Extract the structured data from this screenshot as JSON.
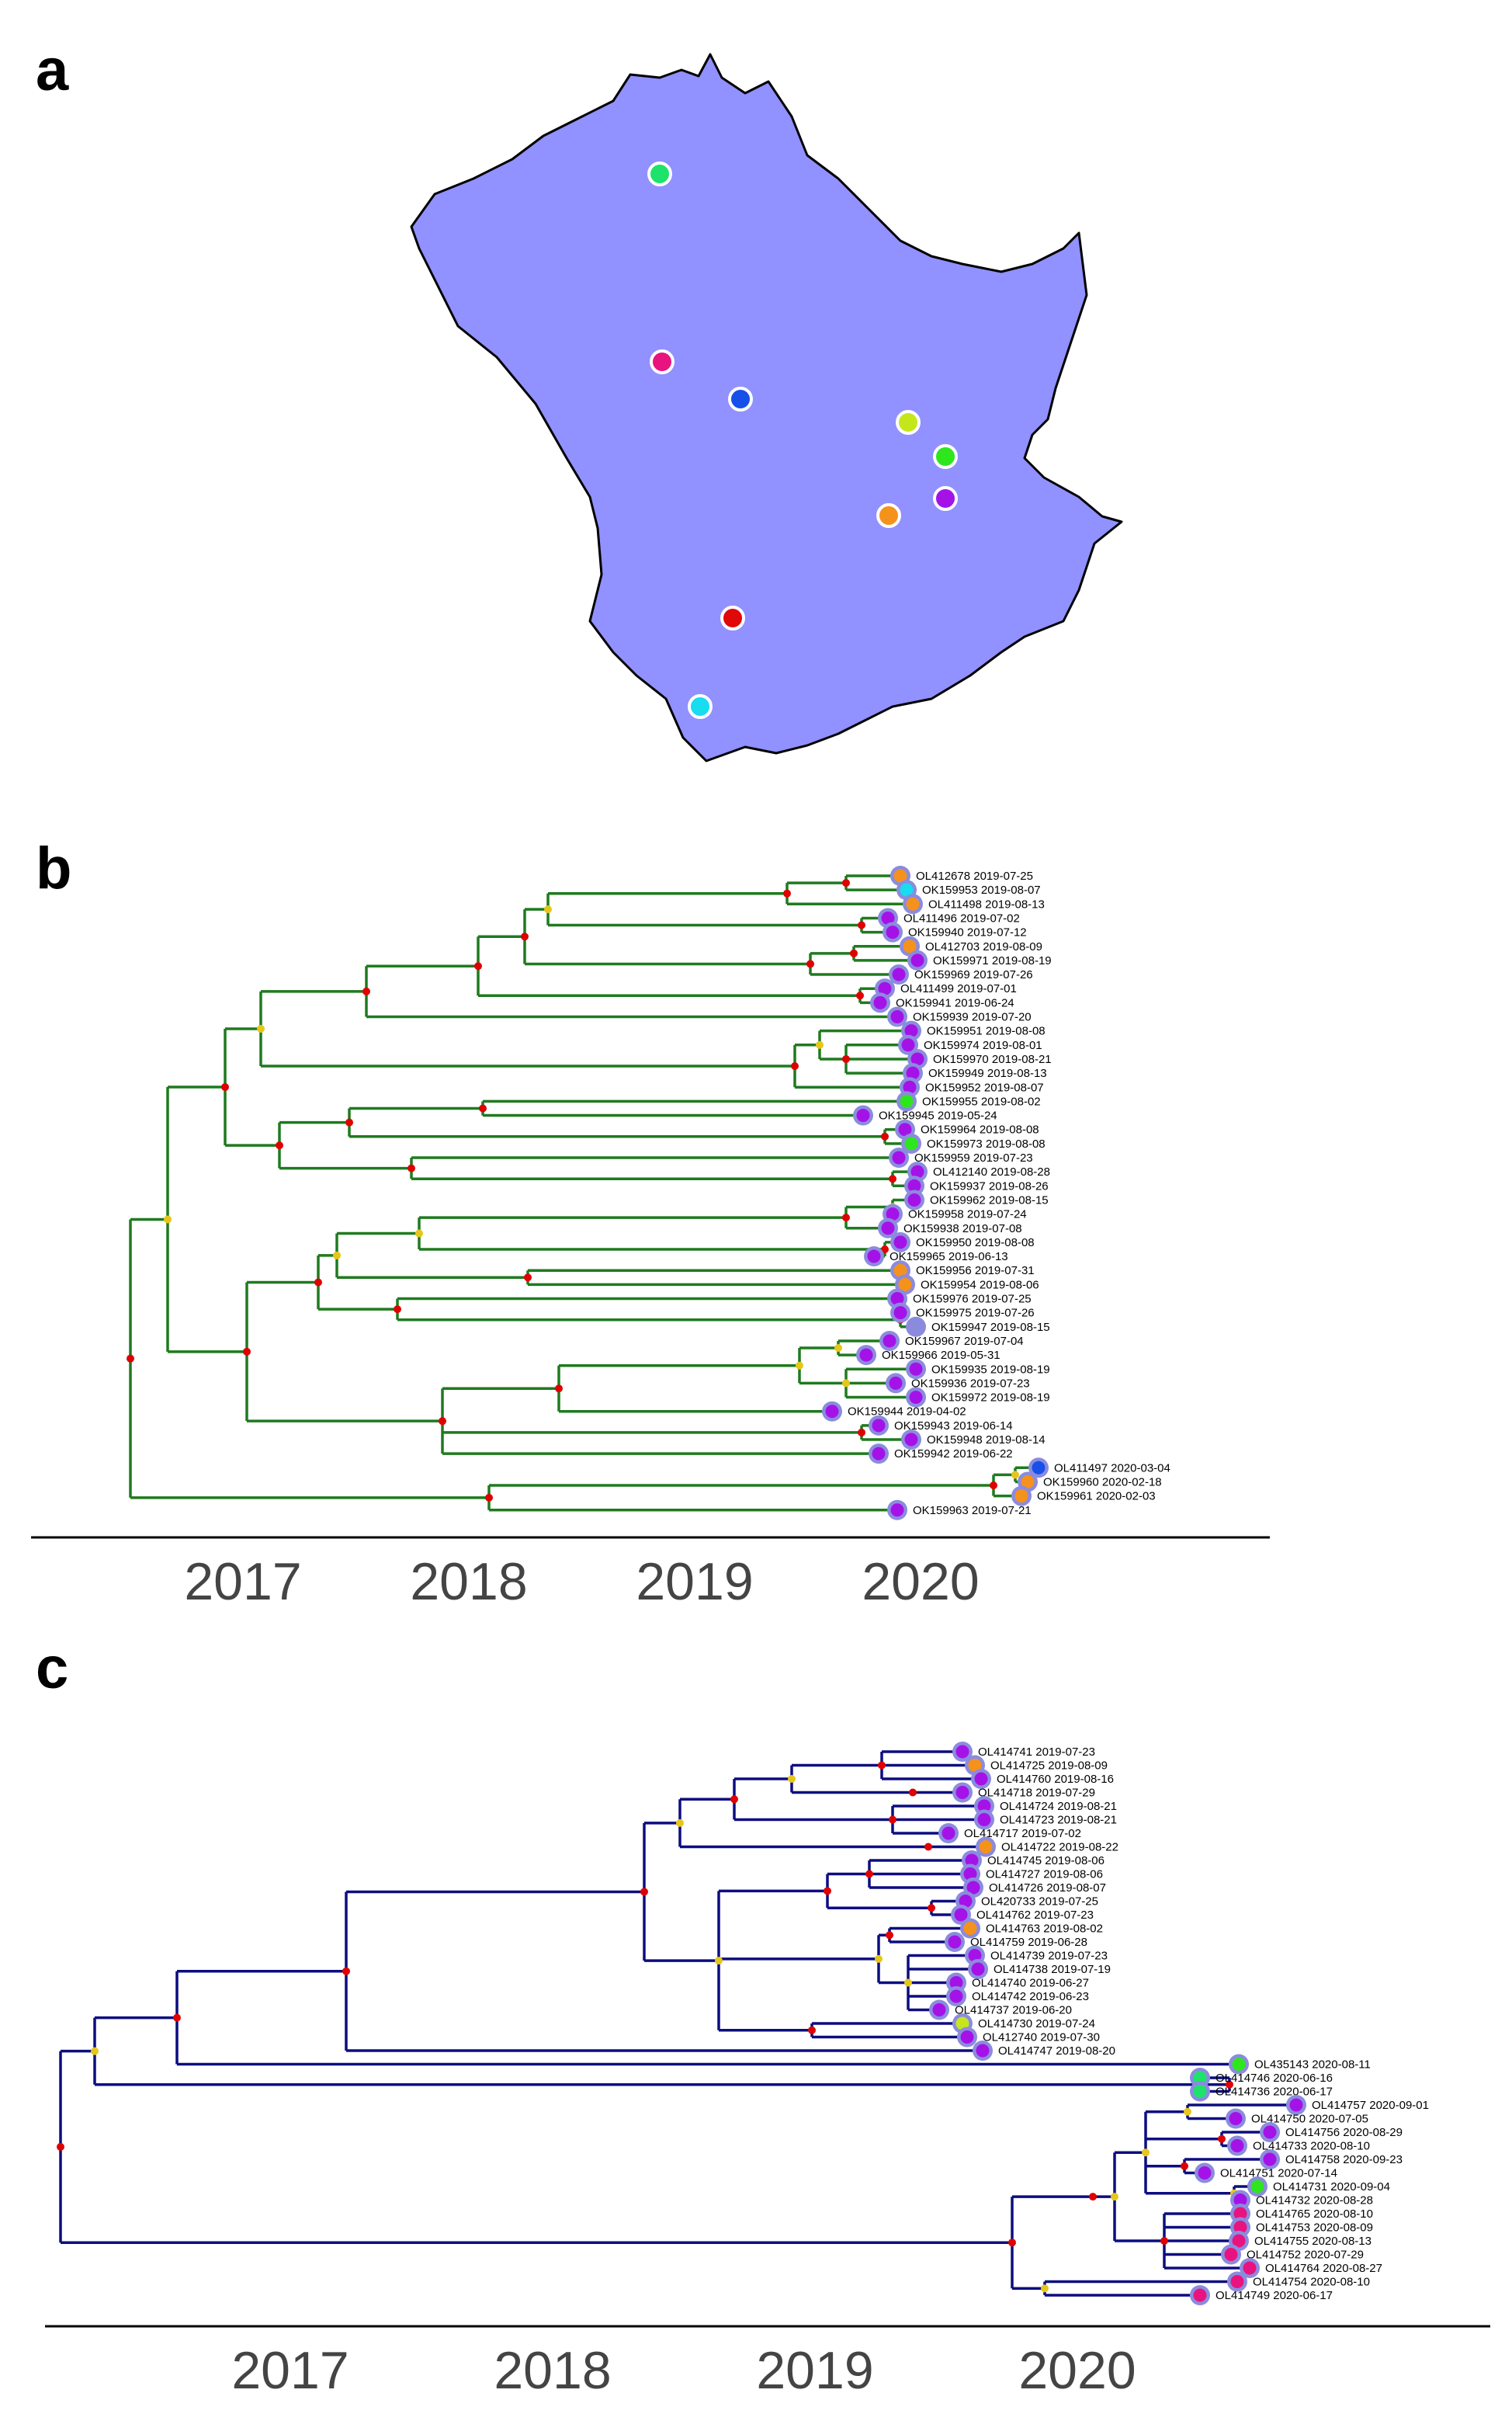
{
  "panels": [
    {
      "letter": "a"
    },
    {
      "letter": "b"
    },
    {
      "letter": "c"
    }
  ],
  "colors": {
    "map_fill": "#9191ff",
    "tree_b_branch": "#1f7a1f",
    "tree_c_branch": "#0d0d80",
    "node_high": "#e00000",
    "node_mid": "#e6c619",
    "tip_outline": "#8b8bde"
  },
  "panel_a_map": {
    "sites": [
      {
        "color": "#1de36b"
      },
      {
        "color": "#e8137f"
      },
      {
        "color": "#1650e8"
      },
      {
        "color": "#c6e61c"
      },
      {
        "color": "#2ee61c"
      },
      {
        "color": "#a512e8"
      },
      {
        "color": "#f5921c"
      },
      {
        "color": "#e00808"
      },
      {
        "color": "#18dcf0"
      }
    ]
  },
  "panel_b_tree": {
    "x_ticks": [
      "2017",
      "2018",
      "2019",
      "2020"
    ],
    "tips": [
      {
        "label": "OL412678 2019-07-25",
        "color": "#f5921c"
      },
      {
        "label": "OK159953 2019-08-07",
        "color": "#18dcf0"
      },
      {
        "label": "OL411498 2019-08-13",
        "color": "#f5921c"
      },
      {
        "label": "OL411496 2019-07-02",
        "color": "#a512e8"
      },
      {
        "label": "OK159940 2019-07-12",
        "color": "#a512e8"
      },
      {
        "label": "OL412703 2019-08-09",
        "color": "#f5921c"
      },
      {
        "label": "OK159971 2019-08-19",
        "color": "#a512e8"
      },
      {
        "label": "OK159969 2019-07-26",
        "color": "#a512e8"
      },
      {
        "label": "OL411499 2019-07-01",
        "color": "#a512e8"
      },
      {
        "label": "OK159941 2019-06-24",
        "color": "#a512e8"
      },
      {
        "label": "OK159939 2019-07-20",
        "color": "#a512e8"
      },
      {
        "label": "OK159951 2019-08-08",
        "color": "#a512e8"
      },
      {
        "label": "OK159974 2019-08-01",
        "color": "#a512e8"
      },
      {
        "label": "OK159970 2019-08-21",
        "color": "#a512e8"
      },
      {
        "label": "OK159949 2019-08-13",
        "color": "#a512e8"
      },
      {
        "label": "OK159952 2019-08-07",
        "color": "#a512e8"
      },
      {
        "label": "OK159955 2019-08-02",
        "color": "#2ee61c"
      },
      {
        "label": "OK159945 2019-05-24",
        "color": "#a512e8"
      },
      {
        "label": "OK159964 2019-08-08",
        "color": "#a512e8"
      },
      {
        "label": "OK159973 2019-08-08",
        "color": "#2ee61c"
      },
      {
        "label": "OK159959 2019-07-23",
        "color": "#a512e8"
      },
      {
        "label": "OL412140 2019-08-28",
        "color": "#a512e8"
      },
      {
        "label": "OK159937 2019-08-26",
        "color": "#a512e8"
      },
      {
        "label": "OK159962 2019-08-15",
        "color": "#a512e8"
      },
      {
        "label": "OK159958 2019-07-24",
        "color": "#a512e8"
      },
      {
        "label": "OK159938 2019-07-08",
        "color": "#a512e8"
      },
      {
        "label": "OK159950 2019-08-08",
        "color": "#a512e8"
      },
      {
        "label": "OK159965 2019-06-13",
        "color": "#a512e8"
      },
      {
        "label": "OK159956 2019-07-31",
        "color": "#f5921c"
      },
      {
        "label": "OK159954 2019-08-06",
        "color": "#f5921c"
      },
      {
        "label": "OK159976 2019-07-25",
        "color": "#a512e8"
      },
      {
        "label": "OK159975 2019-07-26",
        "color": "#a512e8"
      },
      {
        "label": "OK159947 2019-08-15",
        "color": "#8b8bde"
      },
      {
        "label": "OK159967 2019-07-04",
        "color": "#a512e8"
      },
      {
        "label": "OK159966 2019-05-31",
        "color": "#a512e8"
      },
      {
        "label": "OK159935 2019-08-19",
        "color": "#a512e8"
      },
      {
        "label": "OK159936 2019-07-23",
        "color": "#a512e8"
      },
      {
        "label": "OK159972 2019-08-19",
        "color": "#a512e8"
      },
      {
        "label": "OK159944 2019-04-02",
        "color": "#a512e8"
      },
      {
        "label": "OK159943 2019-06-14",
        "color": "#a512e8"
      },
      {
        "label": "OK159948 2019-08-14",
        "color": "#a512e8"
      },
      {
        "label": "OK159942 2019-06-22",
        "color": "#a512e8"
      },
      {
        "label": "OL411497 2020-03-04",
        "color": "#1650e8"
      },
      {
        "label": "OK159960 2020-02-18",
        "color": "#f5921c"
      },
      {
        "label": "OK159961 2020-02-03",
        "color": "#f5921c"
      },
      {
        "label": "OK159963 2019-07-21",
        "color": "#a512e8"
      }
    ]
  },
  "panel_c_tree": {
    "x_ticks": [
      "2017",
      "2018",
      "2019",
      "2020"
    ],
    "tips": [
      {
        "label": "OL414741 2019-07-23",
        "color": "#a512e8"
      },
      {
        "label": "OL414725 2019-08-09",
        "color": "#f5921c"
      },
      {
        "label": "OL414760 2019-08-16",
        "color": "#a512e8"
      },
      {
        "label": "OL414718 2019-07-29",
        "color": "#a512e8"
      },
      {
        "label": "OL414724 2019-08-21",
        "color": "#a512e8"
      },
      {
        "label": "OL414723 2019-08-21",
        "color": "#a512e8"
      },
      {
        "label": "OL414717 2019-07-02",
        "color": "#a512e8"
      },
      {
        "label": "OL414722 2019-08-22",
        "color": "#f5921c"
      },
      {
        "label": "OL414745 2019-08-06",
        "color": "#a512e8"
      },
      {
        "label": "OL414727 2019-08-06",
        "color": "#a512e8"
      },
      {
        "label": "OL414726 2019-08-07",
        "color": "#a512e8"
      },
      {
        "label": "OL420733 2019-07-25",
        "color": "#a512e8"
      },
      {
        "label": "OL414762 2019-07-23",
        "color": "#a512e8"
      },
      {
        "label": "OL414763 2019-08-02",
        "color": "#f5921c"
      },
      {
        "label": "OL414759 2019-06-28",
        "color": "#a512e8"
      },
      {
        "label": "OL414739 2019-07-23",
        "color": "#a512e8"
      },
      {
        "label": "OL414738 2019-07-19",
        "color": "#a512e8"
      },
      {
        "label": "OL414740 2019-06-27",
        "color": "#a512e8"
      },
      {
        "label": "OL414742 2019-06-23",
        "color": "#a512e8"
      },
      {
        "label": "OL414737 2019-06-20",
        "color": "#a512e8"
      },
      {
        "label": "OL414730 2019-07-24",
        "color": "#c6e61c"
      },
      {
        "label": "OL412740 2019-07-30",
        "color": "#a512e8"
      },
      {
        "label": "OL414747 2019-08-20",
        "color": "#a512e8"
      },
      {
        "label": "OL435143 2020-08-11",
        "color": "#2ee61c"
      },
      {
        "label": "OL414746 2020-06-16",
        "color": "#1de36b"
      },
      {
        "label": "OL414736 2020-06-17",
        "color": "#1de36b"
      },
      {
        "label": "OL414757 2020-09-01",
        "color": "#a512e8"
      },
      {
        "label": "OL414750 2020-07-05",
        "color": "#a512e8"
      },
      {
        "label": "OL414756 2020-08-29",
        "color": "#a512e8"
      },
      {
        "label": "OL414733 2020-08-10",
        "color": "#a512e8"
      },
      {
        "label": "OL414758 2020-09-23",
        "color": "#a512e8"
      },
      {
        "label": "OL414751 2020-07-14",
        "color": "#a512e8"
      },
      {
        "label": "OL414731 2020-09-04",
        "color": "#2ee61c"
      },
      {
        "label": "OL414732 2020-08-28",
        "color": "#a512e8"
      },
      {
        "label": "OL414765 2020-08-10",
        "color": "#e8137f"
      },
      {
        "label": "OL414753 2020-08-09",
        "color": "#e8137f"
      },
      {
        "label": "OL414755 2020-08-13",
        "color": "#e8137f"
      },
      {
        "label": "OL414752 2020-07-29",
        "color": "#e8137f"
      },
      {
        "label": "OL414764 2020-08-27",
        "color": "#e8137f"
      },
      {
        "label": "OL414754 2020-08-10",
        "color": "#e8137f"
      },
      {
        "label": "OL414749 2020-06-17",
        "color": "#e8137f"
      }
    ]
  }
}
